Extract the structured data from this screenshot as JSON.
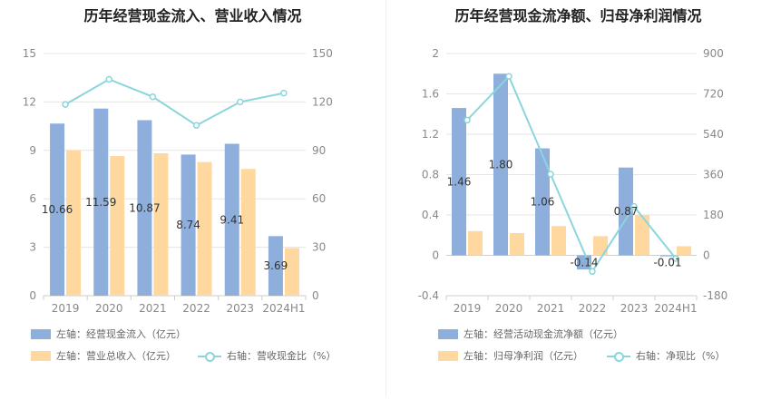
{
  "colors": {
    "bar1": "#8eaedb",
    "bar2": "#fed89f",
    "line": "#8ad6dc",
    "grid": "#e5e5e5",
    "axis_text": "#888888"
  },
  "chart_data": [
    {
      "type": "bar",
      "title": "历年经营现金流入、营业收入情况",
      "categories": [
        "2019",
        "2020",
        "2021",
        "2022",
        "2023",
        "2024H1"
      ],
      "y_left": {
        "min": 0,
        "max": 15,
        "ticks": [
          0,
          3,
          6,
          9,
          12,
          15
        ]
      },
      "y_right": {
        "min": 0,
        "max": 150,
        "ticks": [
          0,
          30,
          60,
          90,
          120,
          150
        ]
      },
      "series": [
        {
          "name": "左轴：经营现金流入（亿元）",
          "kind": "bar",
          "axis": "left",
          "color": "#8eaedb",
          "values": [
            10.66,
            11.59,
            10.87,
            8.74,
            9.41,
            3.69
          ],
          "labels": [
            "10.66",
            "11.59",
            "10.87",
            "8.74",
            "9.41",
            "3.69"
          ]
        },
        {
          "name": "左轴：营业总收入（亿元）",
          "kind": "bar",
          "axis": "left",
          "color": "#fed89f",
          "values": [
            9.0,
            8.65,
            8.82,
            8.28,
            7.85,
            2.95
          ]
        },
        {
          "name": "右轴：营收现金比（%）",
          "kind": "line",
          "axis": "right",
          "color": "#8ad6dc",
          "values": [
            118.5,
            134.0,
            123.2,
            105.5,
            120.0,
            125.5
          ]
        }
      ]
    },
    {
      "type": "bar",
      "title": "历年经营现金流净额、归母净利润情况",
      "categories": [
        "2019",
        "2020",
        "2021",
        "2022",
        "2023",
        "2024H1"
      ],
      "y_left": {
        "min": -0.4,
        "max": 2,
        "ticks": [
          "-0.4",
          "0",
          "0.4",
          "0.8",
          "1.2",
          "1.6",
          "2"
        ]
      },
      "y_right": {
        "min": -180,
        "max": 900,
        "ticks": [
          -180,
          0,
          180,
          360,
          540,
          720,
          900
        ]
      },
      "series": [
        {
          "name": "左轴：经营活动现金流净额（亿元）",
          "kind": "bar",
          "axis": "left",
          "color": "#8eaedb",
          "values": [
            1.46,
            1.8,
            1.06,
            -0.14,
            0.87,
            -0.01
          ],
          "labels": [
            "1.46",
            "1.80",
            "1.06",
            "-0.14",
            "0.87",
            "-0.01"
          ]
        },
        {
          "name": "左轴：归母净利润（亿元）",
          "kind": "bar",
          "axis": "left",
          "color": "#fed89f",
          "values": [
            0.24,
            0.22,
            0.29,
            0.19,
            0.4,
            0.09
          ]
        },
        {
          "name": "右轴：净现比（%）",
          "kind": "line",
          "axis": "right",
          "color": "#8ad6dc",
          "values": [
            603,
            798,
            362,
            -72,
            218,
            -14
          ]
        }
      ]
    }
  ]
}
